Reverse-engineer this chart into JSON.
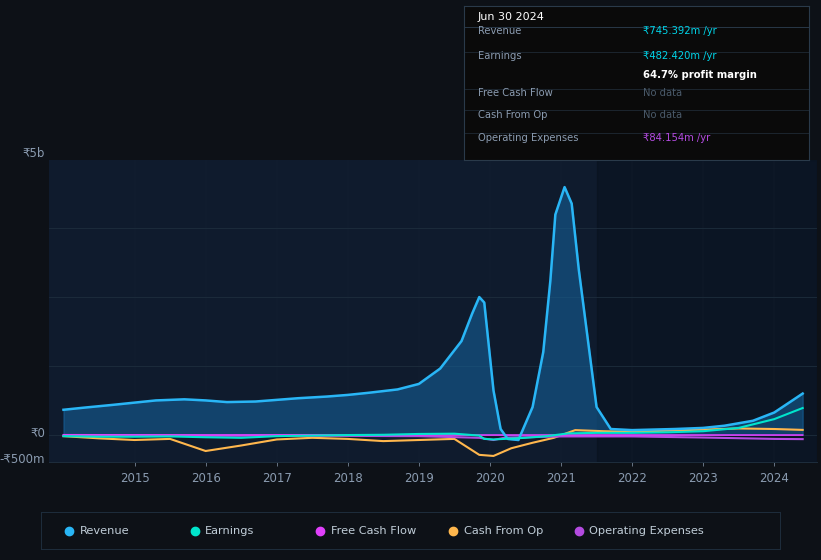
{
  "bg_color": "#0d1117",
  "plot_bg_color": "#0f1b2d",
  "grid_color": "#1e2d3d",
  "title_date": "Jun 30 2024",
  "info_box": {
    "Revenue": {
      "value": "₹745.392m /yr",
      "color": "#00d4e8"
    },
    "Earnings": {
      "value": "₹482.420m /yr",
      "color": "#00d4e8"
    },
    "profit_margin": "64.7% profit margin",
    "Free Cash Flow": {
      "value": "No data",
      "color": "#4a5a6a"
    },
    "Cash From Op": {
      "value": "No data",
      "color": "#4a5a6a"
    },
    "Operating Expenses": {
      "value": "₹84.154m /yr",
      "color": "#b44be1"
    }
  },
  "ylabel_top": "₹5b",
  "ylabel_zero": "₹0",
  "ylabel_bottom": "-₹500m",
  "x_ticks": [
    2015,
    2016,
    2017,
    2018,
    2019,
    2020,
    2021,
    2022,
    2023,
    2024
  ],
  "legend": [
    {
      "label": "Revenue",
      "color": "#29b6f6"
    },
    {
      "label": "Earnings",
      "color": "#00e5cc"
    },
    {
      "label": "Free Cash Flow",
      "color": "#e040fb"
    },
    {
      "label": "Cash From Op",
      "color": "#ffb74d"
    },
    {
      "label": "Operating Expenses",
      "color": "#b44be1"
    }
  ],
  "revenue_x": [
    2014.0,
    2014.3,
    2014.7,
    2015.0,
    2015.3,
    2015.7,
    2016.0,
    2016.3,
    2016.7,
    2017.0,
    2017.3,
    2017.7,
    2018.0,
    2018.3,
    2018.7,
    2019.0,
    2019.3,
    2019.6,
    2019.75,
    2019.85,
    2019.92,
    2020.05,
    2020.15,
    2020.25,
    2020.4,
    2020.6,
    2020.75,
    2020.85,
    2020.92,
    2021.05,
    2021.15,
    2021.25,
    2021.5,
    2021.7,
    2022.0,
    2022.3,
    2022.6,
    2023.0,
    2023.3,
    2023.7,
    2024.0,
    2024.4
  ],
  "revenue_y": [
    450,
    490,
    540,
    580,
    620,
    640,
    620,
    590,
    600,
    630,
    660,
    690,
    720,
    760,
    820,
    920,
    1200,
    1700,
    2200,
    2500,
    2400,
    800,
    100,
    -80,
    -100,
    500,
    1500,
    2800,
    4000,
    4500,
    4200,
    3000,
    500,
    100,
    80,
    90,
    100,
    120,
    160,
    250,
    400,
    745
  ],
  "earnings_x": [
    2014.0,
    2014.5,
    2015.0,
    2015.5,
    2016.0,
    2016.5,
    2017.0,
    2017.5,
    2018.0,
    2018.5,
    2019.0,
    2019.5,
    2019.85,
    2019.92,
    2020.05,
    2020.2,
    2020.5,
    2020.8,
    2021.1,
    2021.5,
    2022.0,
    2022.5,
    2023.0,
    2023.5,
    2024.0,
    2024.4
  ],
  "earnings_y": [
    -30,
    -40,
    -40,
    -35,
    -50,
    -60,
    -30,
    -20,
    -10,
    -5,
    10,
    15,
    -20,
    -80,
    -90,
    -80,
    -60,
    -30,
    20,
    30,
    30,
    40,
    60,
    120,
    280,
    482
  ],
  "cash_from_op_x": [
    2014.0,
    2014.5,
    2015.0,
    2015.5,
    2016.0,
    2016.5,
    2017.0,
    2017.5,
    2018.0,
    2018.5,
    2019.0,
    2019.5,
    2019.85,
    2020.05,
    2020.3,
    2020.6,
    2020.9,
    2021.2,
    2021.6,
    2022.0,
    2022.5,
    2023.0,
    2023.5,
    2024.0,
    2024.4
  ],
  "cash_from_op_y": [
    -30,
    -70,
    -100,
    -80,
    -300,
    -200,
    -90,
    -60,
    -80,
    -120,
    -100,
    -80,
    -370,
    -390,
    -250,
    -150,
    -60,
    80,
    60,
    50,
    70,
    90,
    110,
    100,
    84
  ],
  "operating_expenses_x": [
    2014.0,
    2015.0,
    2016.0,
    2017.0,
    2018.0,
    2019.0,
    2019.85,
    2020.05,
    2020.2,
    2021.0,
    2022.0,
    2023.0,
    2024.0,
    2024.4
  ],
  "operating_expenses_y": [
    -15,
    -20,
    -25,
    -20,
    -25,
    -30,
    -60,
    -100,
    -60,
    -35,
    -35,
    -55,
    -80,
    -84
  ],
  "free_cash_flow_x": [
    2014.0,
    2016.0,
    2018.0,
    2020.0,
    2022.0,
    2024.0,
    2024.4
  ],
  "free_cash_flow_y": [
    -5,
    -8,
    -8,
    -10,
    -10,
    -10,
    -10
  ],
  "ylim": [
    -500,
    5000
  ],
  "xlim": [
    2013.8,
    2024.6
  ],
  "shaded_right_start": 2021.5
}
